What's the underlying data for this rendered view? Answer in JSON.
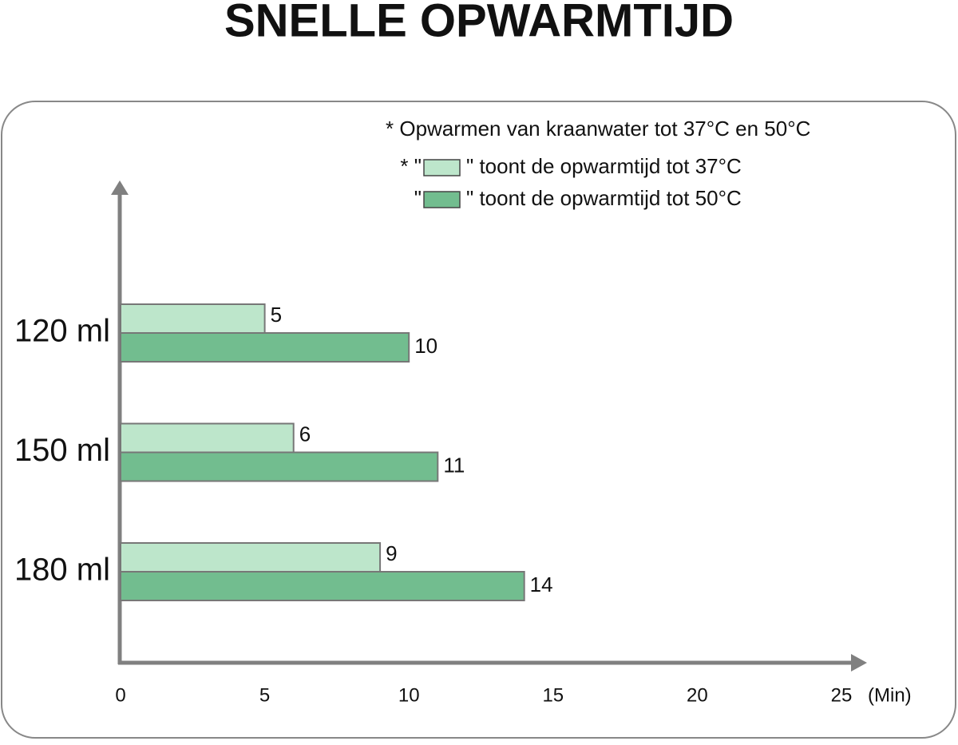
{
  "chart_data": {
    "type": "hbar",
    "title": "SNELLE OPWARMTIJD",
    "note": "* Opwarmen van kraanwater tot 37°C en 50°C",
    "categories": [
      "120 ml",
      "150 ml",
      "180 ml"
    ],
    "series": [
      {
        "name": "\" toont de opwarmtijd tot 37°C",
        "legend_prefix": "* \"",
        "color": "#bde6cb",
        "values": [
          5,
          6,
          9
        ]
      },
      {
        "name": "\" toont de opwarmtijd tot 50°C",
        "legend_prefix": "\"",
        "color": "#72bd8f",
        "values": [
          10,
          11,
          14
        ]
      }
    ],
    "x_label": "(Min)",
    "xlim": [
      0,
      25
    ],
    "xticks": [
      0,
      5,
      10,
      15,
      20,
      25
    ]
  }
}
